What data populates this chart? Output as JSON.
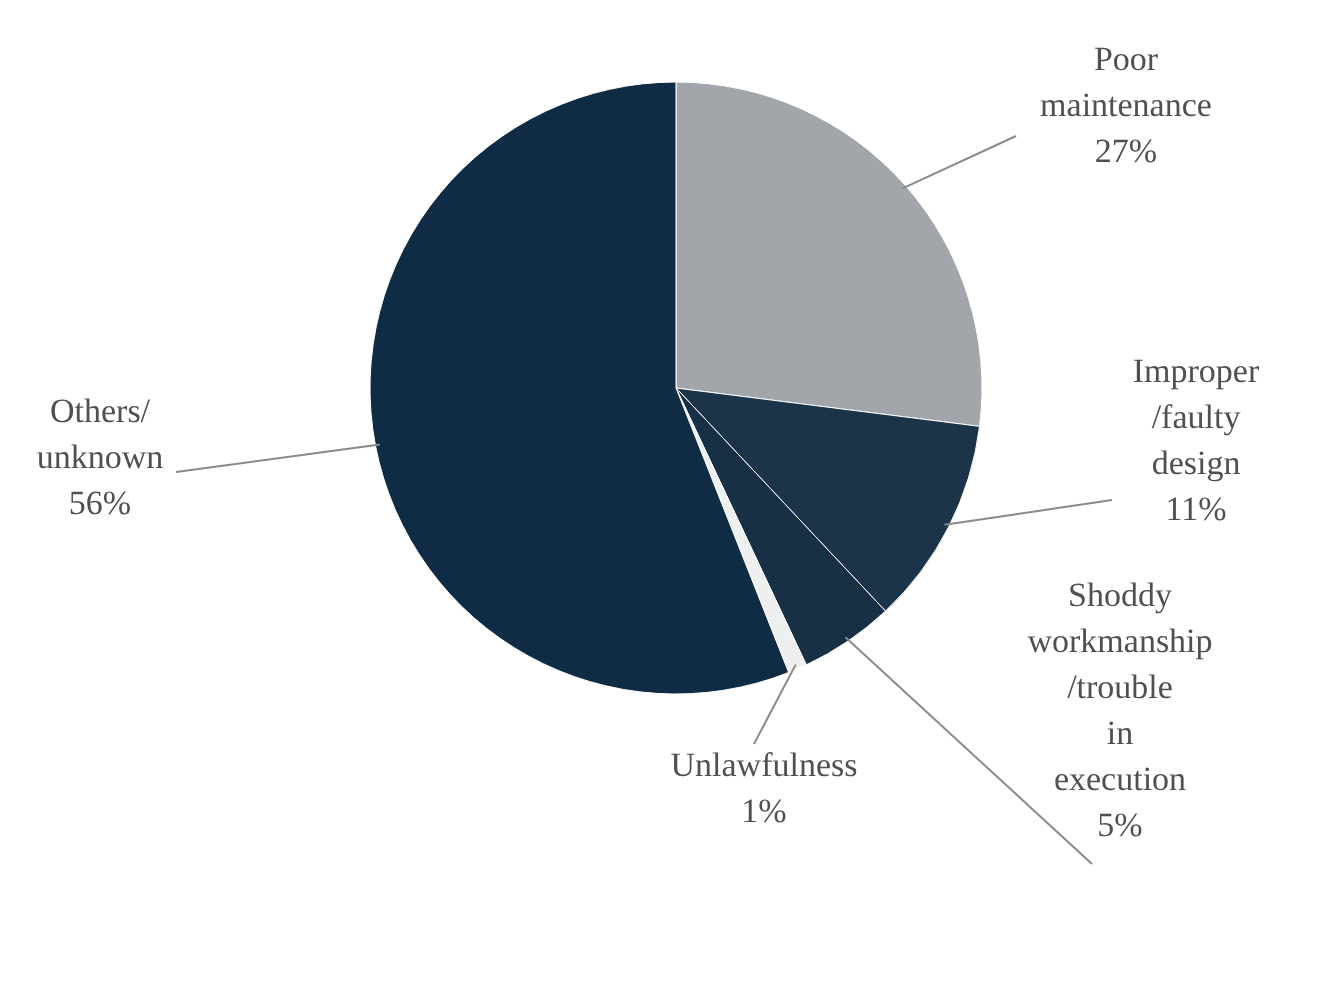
{
  "chart_data": {
    "type": "pie",
    "categories": [
      "Poor maintenance",
      "Improper /faulty design",
      "Shoddy workmanship /trouble in execution",
      "Unlawfulness",
      "Others/ unknown"
    ],
    "values": [
      27,
      11,
      5,
      1,
      56
    ],
    "colors": [
      "#a2a6aa",
      "#1c3449",
      "#173045",
      "#eef0f0",
      "#0f2c44"
    ],
    "value_labels": [
      "27%",
      "11%",
      "5%",
      "1%",
      "56%"
    ]
  }
}
